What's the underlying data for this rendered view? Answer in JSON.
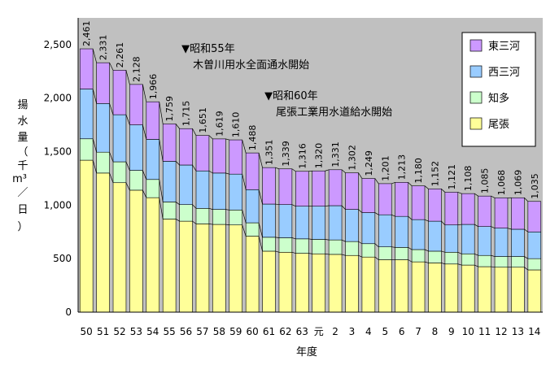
{
  "chart_data": {
    "type": "bar",
    "stacked": true,
    "xlabel": "年度",
    "ylabel": [
      "揚",
      "水",
      "量",
      "（",
      "千",
      "m³",
      "／",
      "日",
      "）"
    ],
    "ylim": [
      0,
      2750
    ],
    "yticks": [
      0,
      500,
      1000,
      1500,
      2000,
      2500
    ],
    "ytick_labels": [
      "0",
      "500",
      "1,000",
      "1,500",
      "2,000",
      "2,500"
    ],
    "categories": [
      "50",
      "51",
      "52",
      "53",
      "54",
      "55",
      "56",
      "57",
      "58",
      "59",
      "60",
      "61",
      "62",
      "63",
      "元",
      "2",
      "3",
      "4",
      "5",
      "6",
      "7",
      "8",
      "9",
      "10",
      "11",
      "12",
      "13",
      "14"
    ],
    "totals": [
      2461,
      2331,
      2261,
      2128,
      1966,
      1759,
      1715,
      1651,
      1619,
      1610,
      1488,
      1351,
      1339,
      1316,
      1320,
      1331,
      1302,
      1249,
      1201,
      1213,
      1180,
      1152,
      1121,
      1108,
      1085,
      1068,
      1069,
      1035
    ],
    "total_labels": [
      "2,461",
      "2,331",
      "2,261",
      "2,128",
      "1,966",
      "1,759",
      "1,715",
      "1,651",
      "1,619",
      "1,610",
      "1,488",
      "1,351",
      "1,339",
      "1,316",
      "1,320",
      "1,331",
      "1,302",
      "1,249",
      "1,201",
      "1,213",
      "1,180",
      "1,152",
      "1,121",
      "1,108",
      "1,085",
      "1,068",
      "1,069",
      "1,035"
    ],
    "series": [
      {
        "name": "尾張",
        "color": "#ffff99",
        "values": [
          1420,
          1300,
          1210,
          1140,
          1070,
          870,
          850,
          825,
          820,
          815,
          710,
          570,
          560,
          550,
          545,
          540,
          530,
          515,
          490,
          490,
          470,
          460,
          450,
          440,
          425,
          420,
          420,
          395
        ]
      },
      {
        "name": "知多",
        "color": "#ccffcc",
        "values": [
          200,
          195,
          195,
          185,
          170,
          160,
          155,
          145,
          140,
          140,
          125,
          130,
          135,
          135,
          135,
          135,
          130,
          125,
          120,
          115,
          115,
          110,
          110,
          105,
          105,
          100,
          100,
          105
        ]
      },
      {
        "name": "西三河",
        "color": "#99ccff",
        "values": [
          465,
          455,
          440,
          425,
          375,
          380,
          370,
          350,
          340,
          335,
          310,
          310,
          310,
          305,
          310,
          320,
          300,
          290,
          300,
          290,
          280,
          280,
          255,
          275,
          270,
          265,
          255,
          250
        ]
      },
      {
        "name": "東三河",
        "color": "#cc99ff",
        "values": [
          376,
          381,
          416,
          378,
          351,
          349,
          340,
          331,
          319,
          320,
          343,
          341,
          334,
          326,
          330,
          336,
          342,
          319,
          291,
          318,
          315,
          302,
          306,
          288,
          285,
          283,
          294,
          285
        ]
      }
    ],
    "legend_position": "top-right",
    "legend_order": [
      "東三河",
      "西三河",
      "知多",
      "尾張"
    ],
    "annotations": [
      {
        "marker": "▼",
        "lines": [
          "昭和55年",
          "木曽川用水全面通水開始"
        ],
        "category": "55"
      },
      {
        "marker": "▼",
        "lines": [
          "昭和60年",
          "尾張工業用水道給水開始"
        ],
        "category": "60"
      }
    ],
    "plot_background": "#c0c0c0"
  }
}
